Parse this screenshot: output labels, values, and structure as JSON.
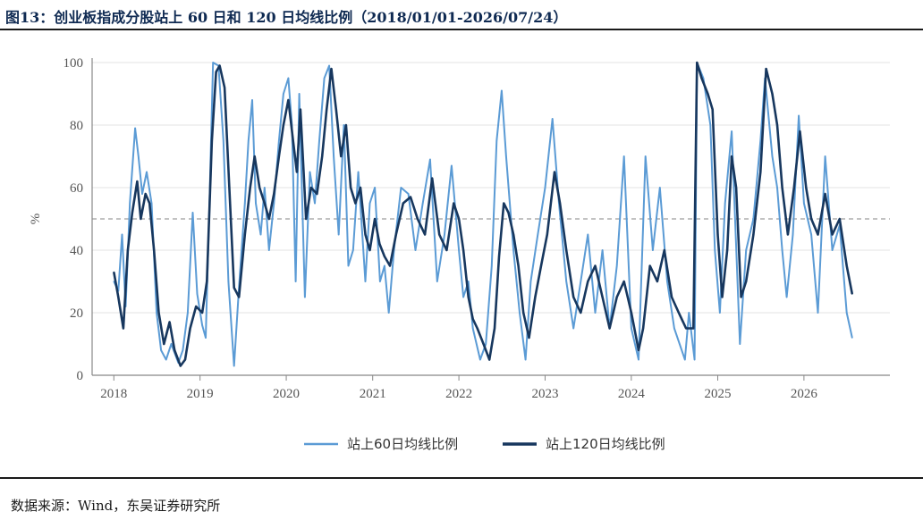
{
  "figure_title": "图13：创业板指成分股站上 60 日和 120 日均线比例（2018/01/01-2026/07/24）",
  "source_note": "数据来源：Wind，东吴证券研究所",
  "chart_data": {
    "type": "line",
    "ylabel": "%",
    "xlabel": "",
    "ylim": [
      0,
      100
    ],
    "xlim": [
      "2017-10-01",
      "2026-12-31"
    ],
    "yticks": [
      0,
      20,
      40,
      60,
      80,
      100
    ],
    "xtick_labels": [
      "2018",
      "2019",
      "2020",
      "2021",
      "2022",
      "2023",
      "2024",
      "2025",
      "2026"
    ],
    "grid": "horizontal",
    "legend_position": "bottom-center",
    "reference_line": {
      "y": 50,
      "style": "dashed",
      "color": "#9e9e9e"
    },
    "series": [
      {
        "name": "站上60日均线比例",
        "color": "#5b9bd5",
        "points": [
          [
            "2018-01-01",
            30
          ],
          [
            "2018-01-20",
            27
          ],
          [
            "2018-02-05",
            45
          ],
          [
            "2018-02-20",
            22
          ],
          [
            "2018-03-10",
            55
          ],
          [
            "2018-04-01",
            79
          ],
          [
            "2018-04-15",
            70
          ],
          [
            "2018-05-01",
            58
          ],
          [
            "2018-05-20",
            65
          ],
          [
            "2018-06-10",
            55
          ],
          [
            "2018-07-01",
            20
          ],
          [
            "2018-07-20",
            8
          ],
          [
            "2018-08-10",
            5
          ],
          [
            "2018-09-01",
            10
          ],
          [
            "2018-10-01",
            4
          ],
          [
            "2018-10-20",
            8
          ],
          [
            "2018-11-10",
            20
          ],
          [
            "2018-12-01",
            52
          ],
          [
            "2018-12-20",
            26
          ],
          [
            "2019-01-10",
            16
          ],
          [
            "2019-01-25",
            12
          ],
          [
            "2019-02-10",
            55
          ],
          [
            "2019-02-25",
            100
          ],
          [
            "2019-03-20",
            99
          ],
          [
            "2019-04-10",
            75
          ],
          [
            "2019-05-01",
            30
          ],
          [
            "2019-05-25",
            3
          ],
          [
            "2019-06-15",
            28
          ],
          [
            "2019-07-10",
            55
          ],
          [
            "2019-07-25",
            75
          ],
          [
            "2019-08-10",
            88
          ],
          [
            "2019-08-25",
            55
          ],
          [
            "2019-09-15",
            45
          ],
          [
            "2019-10-01",
            60
          ],
          [
            "2019-10-20",
            40
          ],
          [
            "2019-11-10",
            55
          ],
          [
            "2019-12-01",
            75
          ],
          [
            "2019-12-20",
            90
          ],
          [
            "2020-01-10",
            95
          ],
          [
            "2020-01-25",
            80
          ],
          [
            "2020-02-10",
            30
          ],
          [
            "2020-02-25",
            90
          ],
          [
            "2020-03-20",
            25
          ],
          [
            "2020-04-10",
            65
          ],
          [
            "2020-05-01",
            55
          ],
          [
            "2020-05-20",
            75
          ],
          [
            "2020-06-10",
            95
          ],
          [
            "2020-07-01",
            99
          ],
          [
            "2020-07-20",
            70
          ],
          [
            "2020-08-10",
            45
          ],
          [
            "2020-09-01",
            80
          ],
          [
            "2020-09-20",
            35
          ],
          [
            "2020-10-10",
            40
          ],
          [
            "2020-11-01",
            65
          ],
          [
            "2020-12-01",
            30
          ],
          [
            "2020-12-20",
            55
          ],
          [
            "2021-01-10",
            60
          ],
          [
            "2021-02-01",
            30
          ],
          [
            "2021-02-20",
            35
          ],
          [
            "2021-03-10",
            20
          ],
          [
            "2021-04-01",
            40
          ],
          [
            "2021-05-01",
            60
          ],
          [
            "2021-06-01",
            58
          ],
          [
            "2021-07-01",
            40
          ],
          [
            "2021-08-01",
            55
          ],
          [
            "2021-09-01",
            69
          ],
          [
            "2021-10-01",
            30
          ],
          [
            "2021-11-01",
            45
          ],
          [
            "2021-12-01",
            67
          ],
          [
            "2022-01-01",
            40
          ],
          [
            "2022-01-20",
            25
          ],
          [
            "2022-02-10",
            30
          ],
          [
            "2022-03-01",
            15
          ],
          [
            "2022-04-01",
            5
          ],
          [
            "2022-04-25",
            10
          ],
          [
            "2022-05-20",
            35
          ],
          [
            "2022-06-10",
            75
          ],
          [
            "2022-07-01",
            91
          ],
          [
            "2022-07-20",
            70
          ],
          [
            "2022-08-20",
            40
          ],
          [
            "2022-09-15",
            20
          ],
          [
            "2022-10-10",
            5
          ],
          [
            "2022-11-01",
            30
          ],
          [
            "2022-12-01",
            45
          ],
          [
            "2023-01-01",
            60
          ],
          [
            "2023-02-01",
            82
          ],
          [
            "2023-03-01",
            55
          ],
          [
            "2023-04-01",
            30
          ],
          [
            "2023-05-01",
            15
          ],
          [
            "2023-06-01",
            30
          ],
          [
            "2023-07-01",
            45
          ],
          [
            "2023-08-01",
            20
          ],
          [
            "2023-09-01",
            40
          ],
          [
            "2023-10-01",
            15
          ],
          [
            "2023-11-01",
            35
          ],
          [
            "2023-12-01",
            70
          ],
          [
            "2024-01-01",
            15
          ],
          [
            "2024-02-01",
            5
          ],
          [
            "2024-03-01",
            70
          ],
          [
            "2024-04-01",
            40
          ],
          [
            "2024-05-01",
            60
          ],
          [
            "2024-06-01",
            30
          ],
          [
            "2024-07-01",
            15
          ],
          [
            "2024-08-15",
            5
          ],
          [
            "2024-09-01",
            20
          ],
          [
            "2024-09-25",
            5
          ],
          [
            "2024-10-05",
            100
          ],
          [
            "2024-11-01",
            95
          ],
          [
            "2024-12-01",
            80
          ],
          [
            "2024-12-20",
            40
          ],
          [
            "2025-01-10",
            20
          ],
          [
            "2025-02-01",
            55
          ],
          [
            "2025-03-01",
            78
          ],
          [
            "2025-04-05",
            10
          ],
          [
            "2025-05-01",
            40
          ],
          [
            "2025-06-01",
            50
          ],
          [
            "2025-07-01",
            75
          ],
          [
            "2025-07-20",
            95
          ],
          [
            "2025-08-20",
            70
          ],
          [
            "2025-09-10",
            60
          ],
          [
            "2025-10-01",
            40
          ],
          [
            "2025-10-20",
            25
          ],
          [
            "2025-11-15",
            45
          ],
          [
            "2025-12-10",
            83
          ],
          [
            "2026-01-01",
            55
          ],
          [
            "2026-02-01",
            45
          ],
          [
            "2026-03-01",
            20
          ],
          [
            "2026-04-01",
            70
          ],
          [
            "2026-05-01",
            40
          ],
          [
            "2026-06-01",
            48
          ],
          [
            "2026-07-01",
            20
          ],
          [
            "2026-07-24",
            12
          ]
        ]
      },
      {
        "name": "站上120日均线比例",
        "color": "#17375e",
        "points": [
          [
            "2018-01-01",
            33
          ],
          [
            "2018-01-20",
            25
          ],
          [
            "2018-02-10",
            15
          ],
          [
            "2018-03-01",
            40
          ],
          [
            "2018-03-20",
            52
          ],
          [
            "2018-04-10",
            62
          ],
          [
            "2018-04-25",
            50
          ],
          [
            "2018-05-15",
            58
          ],
          [
            "2018-06-01",
            55
          ],
          [
            "2018-06-20",
            40
          ],
          [
            "2018-07-10",
            20
          ],
          [
            "2018-08-01",
            10
          ],
          [
            "2018-08-25",
            17
          ],
          [
            "2018-09-15",
            8
          ],
          [
            "2018-10-10",
            3
          ],
          [
            "2018-10-30",
            5
          ],
          [
            "2018-11-20",
            15
          ],
          [
            "2018-12-15",
            22
          ],
          [
            "2019-01-10",
            20
          ],
          [
            "2019-01-30",
            30
          ],
          [
            "2019-02-20",
            75
          ],
          [
            "2019-03-10",
            97
          ],
          [
            "2019-03-25",
            99
          ],
          [
            "2019-04-15",
            92
          ],
          [
            "2019-05-05",
            60
          ],
          [
            "2019-05-25",
            28
          ],
          [
            "2019-06-15",
            25
          ],
          [
            "2019-07-10",
            45
          ],
          [
            "2019-08-01",
            60
          ],
          [
            "2019-08-20",
            70
          ],
          [
            "2019-09-10",
            60
          ],
          [
            "2019-10-01",
            55
          ],
          [
            "2019-10-20",
            50
          ],
          [
            "2019-11-10",
            58
          ],
          [
            "2019-12-01",
            70
          ],
          [
            "2019-12-20",
            80
          ],
          [
            "2020-01-10",
            88
          ],
          [
            "2020-01-30",
            75
          ],
          [
            "2020-02-15",
            65
          ],
          [
            "2020-03-01",
            85
          ],
          [
            "2020-03-25",
            50
          ],
          [
            "2020-04-15",
            60
          ],
          [
            "2020-05-10",
            58
          ],
          [
            "2020-06-01",
            70
          ],
          [
            "2020-06-20",
            85
          ],
          [
            "2020-07-10",
            98
          ],
          [
            "2020-07-30",
            85
          ],
          [
            "2020-08-20",
            70
          ],
          [
            "2020-09-10",
            80
          ],
          [
            "2020-09-30",
            60
          ],
          [
            "2020-10-20",
            55
          ],
          [
            "2020-11-10",
            60
          ],
          [
            "2020-12-01",
            45
          ],
          [
            "2020-12-20",
            40
          ],
          [
            "2021-01-10",
            50
          ],
          [
            "2021-01-30",
            42
          ],
          [
            "2021-02-20",
            38
          ],
          [
            "2021-03-15",
            35
          ],
          [
            "2021-04-10",
            45
          ],
          [
            "2021-05-10",
            55
          ],
          [
            "2021-06-10",
            57
          ],
          [
            "2021-07-10",
            50
          ],
          [
            "2021-08-10",
            45
          ],
          [
            "2021-09-10",
            63
          ],
          [
            "2021-10-10",
            45
          ],
          [
            "2021-11-10",
            40
          ],
          [
            "2021-12-10",
            55
          ],
          [
            "2022-01-01",
            50
          ],
          [
            "2022-01-20",
            40
          ],
          [
            "2022-02-10",
            25
          ],
          [
            "2022-03-01",
            18
          ],
          [
            "2022-03-20",
            15
          ],
          [
            "2022-04-15",
            10
          ],
          [
            "2022-05-10",
            5
          ],
          [
            "2022-06-01",
            15
          ],
          [
            "2022-06-20",
            38
          ],
          [
            "2022-07-10",
            55
          ],
          [
            "2022-07-30",
            52
          ],
          [
            "2022-08-20",
            45
          ],
          [
            "2022-09-10",
            35
          ],
          [
            "2022-10-01",
            20
          ],
          [
            "2022-10-25",
            12
          ],
          [
            "2022-11-20",
            25
          ],
          [
            "2022-12-15",
            35
          ],
          [
            "2023-01-10",
            45
          ],
          [
            "2023-02-10",
            65
          ],
          [
            "2023-03-05",
            55
          ],
          [
            "2023-04-01",
            40
          ],
          [
            "2023-05-01",
            25
          ],
          [
            "2023-06-01",
            20
          ],
          [
            "2023-07-01",
            30
          ],
          [
            "2023-08-01",
            35
          ],
          [
            "2023-09-01",
            25
          ],
          [
            "2023-10-01",
            15
          ],
          [
            "2023-11-01",
            25
          ],
          [
            "2023-12-01",
            30
          ],
          [
            "2024-01-01",
            20
          ],
          [
            "2024-02-01",
            8
          ],
          [
            "2024-02-20",
            15
          ],
          [
            "2024-03-20",
            35
          ],
          [
            "2024-04-20",
            30
          ],
          [
            "2024-05-20",
            40
          ],
          [
            "2024-06-20",
            25
          ],
          [
            "2024-07-20",
            20
          ],
          [
            "2024-08-20",
            15
          ],
          [
            "2024-09-20",
            15
          ],
          [
            "2024-10-05",
            100
          ],
          [
            "2024-10-25",
            95
          ],
          [
            "2024-11-20",
            90
          ],
          [
            "2024-12-10",
            85
          ],
          [
            "2025-01-01",
            45
          ],
          [
            "2025-01-20",
            25
          ],
          [
            "2025-02-10",
            40
          ],
          [
            "2025-03-01",
            70
          ],
          [
            "2025-03-20",
            60
          ],
          [
            "2025-04-10",
            25
          ],
          [
            "2025-05-01",
            30
          ],
          [
            "2025-06-01",
            45
          ],
          [
            "2025-07-01",
            65
          ],
          [
            "2025-07-25",
            98
          ],
          [
            "2025-08-20",
            90
          ],
          [
            "2025-09-10",
            80
          ],
          [
            "2025-10-01",
            60
          ],
          [
            "2025-10-25",
            45
          ],
          [
            "2025-11-20",
            60
          ],
          [
            "2025-12-15",
            78
          ],
          [
            "2026-01-10",
            60
          ],
          [
            "2026-02-01",
            50
          ],
          [
            "2026-03-01",
            45
          ],
          [
            "2026-04-01",
            58
          ],
          [
            "2026-05-01",
            45
          ],
          [
            "2026-06-01",
            50
          ],
          [
            "2026-07-01",
            35
          ],
          [
            "2026-07-24",
            26
          ]
        ]
      }
    ]
  }
}
